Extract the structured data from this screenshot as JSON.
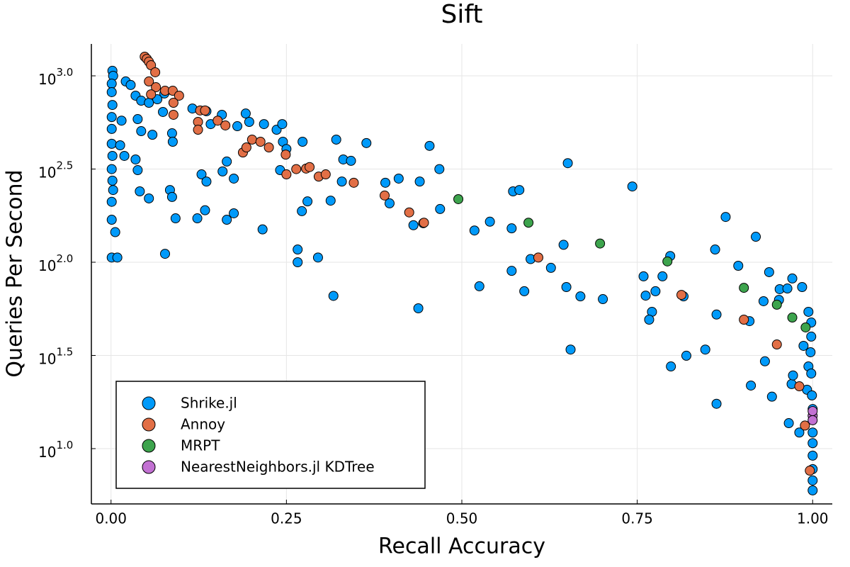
{
  "chart_data": {
    "type": "scatter",
    "title": "Sift",
    "x_label": "Recall Accuracy",
    "y_label": "Queries Per Second",
    "log_y": true,
    "grid": true,
    "legend": "bottom-left",
    "xlim": [
      -0.028,
      1.028
    ],
    "ylim": [
      5.05,
      1483
    ],
    "xticks": [
      {
        "value": 0,
        "label": "0.00"
      },
      {
        "value": 0.25,
        "label": "0.25"
      },
      {
        "value": 0.5,
        "label": "0.50"
      },
      {
        "value": 0.75,
        "label": "0.75"
      },
      {
        "value": 1,
        "label": "1.00"
      }
    ],
    "yticks": [
      {
        "value": 10,
        "label": "10^1.0"
      },
      {
        "value": 31.62,
        "label": "10^1.5"
      },
      {
        "value": 100,
        "label": "10^2.0"
      },
      {
        "value": 316.2,
        "label": "10^2.5"
      },
      {
        "value": 1000,
        "label": "10^3.0"
      }
    ],
    "series": [
      {
        "name": "Shrike.jl",
        "color": "#009afa",
        "x": [
          0.002,
          0.003,
          0.001,
          0.001,
          0.002,
          0.001,
          0.001,
          0.001,
          0.002,
          0.001,
          0.002,
          0.003,
          0.001,
          0.001,
          0.001,
          0.009,
          0.006,
          0.013,
          0.015,
          0.019,
          0.021,
          0.028,
          0.035,
          0.043,
          0.054,
          0.066,
          0.076,
          0.038,
          0.043,
          0.059,
          0.074,
          0.087,
          0.088,
          0.035,
          0.038,
          0.041,
          0.054,
          0.084,
          0.087,
          0.092,
          0.077,
          0.116,
          0.136,
          0.142,
          0.158,
          0.18,
          0.192,
          0.197,
          0.218,
          0.236,
          0.244,
          0.245,
          0.25,
          0.241,
          0.273,
          0.321,
          0.331,
          0.342,
          0.364,
          0.454,
          0.468,
          0.41,
          0.44,
          0.391,
          0.329,
          0.397,
          0.469,
          0.431,
          0.445,
          0.313,
          0.28,
          0.272,
          0.175,
          0.216,
          0.165,
          0.123,
          0.134,
          0.129,
          0.136,
          0.159,
          0.175,
          0.165,
          0.266,
          0.266,
          0.295,
          0.317,
          0.438,
          0.518,
          0.525,
          0.54,
          0.571,
          0.573,
          0.582,
          0.571,
          0.589,
          0.598,
          0.627,
          0.645,
          0.651,
          0.649,
          0.655,
          0.669,
          0.701,
          0.743,
          0.759,
          0.762,
          0.771,
          0.767,
          0.776,
          0.786,
          0.797,
          0.798,
          0.816,
          0.82,
          0.847,
          0.861,
          0.863,
          0.863,
          0.876,
          0.894,
          0.91,
          0.912,
          0.919,
          0.93,
          0.932,
          0.938,
          0.942,
          0.952,
          0.953,
          0.964,
          0.971,
          0.97,
          0.972,
          0.966,
          0.981,
          0.985,
          0.987,
          0.992,
          0.994,
          0.994,
          0.997,
          0.998,
          0.999,
          1.0,
          1.0,
          1.0,
          1.0,
          1.0,
          1.0,
          1.0,
          0.998,
          0.998
        ],
        "values": [
          1064,
          1000,
          908,
          818,
          698,
          601,
          519,
          432,
          372,
          316,
          274,
          244,
          211,
          169,
          106,
          106,
          145,
          424,
          575,
          372,
          933,
          893,
          783,
          736,
          717,
          749,
          804,
          586,
          505,
          483,
          640,
          492,
          443,
          356,
          312,
          240,
          220,
          244,
          224,
          172,
          111,
          668,
          646,
          551,
          618,
          537,
          628,
          566,
          551,
          514,
          551,
          443,
          405,
          312,
          443,
          455,
          356,
          350,
          436,
          421,
          316,
          281,
          271,
          267,
          271,
          207,
          193,
          158,
          162,
          214,
          212,
          188,
          183,
          150,
          169,
          172,
          190,
          296,
          271,
          307,
          281,
          347,
          117,
          100,
          106,
          66,
          56.6,
          148,
          74.3,
          165,
          152,
          240,
          244,
          89.9,
          69.9,
          104,
          93.3,
          124,
          340,
          73.6,
          34.0,
          65.6,
          63.4,
          255,
          84.0,
          66.2,
          54.2,
          49.2,
          69.9,
          84.0,
          108,
          27.6,
          65.6,
          31.5,
          34.0,
          117,
          52.4,
          17.4,
          175,
          95.7,
          48.3,
          21.8,
          137,
          61.8,
          29.4,
          88.5,
          19.0,
          62.8,
          71.7,
          72.3,
          81.8,
          22.2,
          24.7,
          13.7,
          12.2,
          73.6,
          35.6,
          20.7,
          54.2,
          27.6,
          32.9,
          25.3,
          19.3,
          16.3,
          12.2,
          10.7,
          9.17,
          7.76,
          6.75,
          5.97,
          39.9,
          47.5
        ]
      },
      {
        "name": "Annoy",
        "color": "#e26f46",
        "x": [
          0.048,
          0.051,
          0.054,
          0.057,
          0.063,
          0.054,
          0.064,
          0.057,
          0.077,
          0.088,
          0.097,
          0.089,
          0.089,
          0.127,
          0.134,
          0.124,
          0.124,
          0.152,
          0.163,
          0.188,
          0.193,
          0.201,
          0.213,
          0.225,
          0.249,
          0.25,
          0.264,
          0.278,
          0.283,
          0.296,
          0.306,
          0.346,
          0.39,
          0.425,
          0.446,
          0.609,
          0.813,
          0.902,
          0.949,
          0.981,
          0.989,
          0.996
        ],
        "values": [
          1267,
          1233,
          1191,
          1140,
          1045,
          933,
          869,
          796,
          832,
          832,
          783,
          717,
          618,
          652,
          652,
          566,
          514,
          575,
          542,
          388,
          413,
          455,
          443,
          413,
          378,
          296,
          316,
          318,
          324,
          288,
          296,
          267,
          228,
          185,
          163,
          106,
          66.8,
          49.2,
          36.2,
          21.6,
          13.3,
          7.62
        ]
      },
      {
        "name": "MRPT",
        "color": "#3da44d",
        "x": [
          0.495,
          0.595,
          0.697,
          0.793,
          0.902,
          0.949,
          0.971,
          0.99
        ],
        "values": [
          218,
          163,
          126,
          101,
          72.9,
          59.2,
          50.5,
          44.7
        ]
      },
      {
        "name": "NearestNeighbors.jl KDTree",
        "color": "#c271d2",
        "x": [
          1.0,
          1.0,
          1.0
        ],
        "values": [
          15.0,
          14.2,
          15.9
        ]
      }
    ]
  }
}
